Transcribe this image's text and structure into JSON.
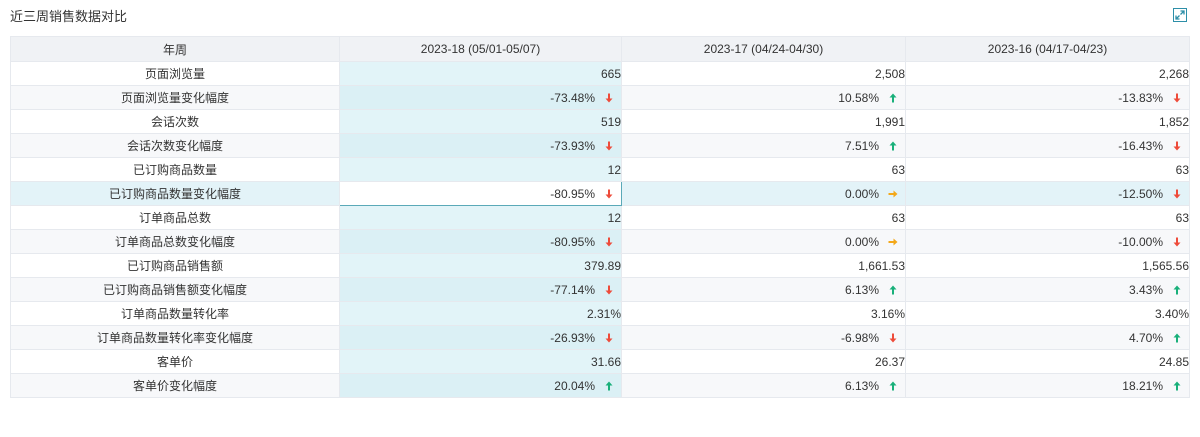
{
  "panel": {
    "title": "近三周销售数据对比",
    "expand_icon": "expand-icon"
  },
  "colors": {
    "up": "#19b07a",
    "down": "#ee4b3a",
    "flat": "#f3a81a"
  },
  "table": {
    "headers": [
      "年周",
      "2023-18 (05/01-05/07)",
      "2023-17 (04/24-04/30)",
      "2023-16 (04/17-04/23)"
    ],
    "rows": [
      {
        "label": "页面浏览量",
        "cells": [
          {
            "v": "665"
          },
          {
            "v": "2,508"
          },
          {
            "v": "2,268"
          }
        ]
      },
      {
        "label": "页面浏览量变化幅度",
        "cells": [
          {
            "v": "-73.48%",
            "t": "down"
          },
          {
            "v": "10.58%",
            "t": "up"
          },
          {
            "v": "-13.83%",
            "t": "down"
          }
        ]
      },
      {
        "label": "会话次数",
        "cells": [
          {
            "v": "519"
          },
          {
            "v": "1,991"
          },
          {
            "v": "1,852"
          }
        ]
      },
      {
        "label": "会话次数变化幅度",
        "cells": [
          {
            "v": "-73.93%",
            "t": "down"
          },
          {
            "v": "7.51%",
            "t": "up"
          },
          {
            "v": "-16.43%",
            "t": "down"
          }
        ]
      },
      {
        "label": "已订购商品数量",
        "cells": [
          {
            "v": "12"
          },
          {
            "v": "63"
          },
          {
            "v": "63"
          }
        ]
      },
      {
        "label": "已订购商品数量变化幅度",
        "cells": [
          {
            "v": "-80.95%",
            "t": "down"
          },
          {
            "v": "0.00%",
            "t": "flat"
          },
          {
            "v": "-12.50%",
            "t": "down"
          }
        ]
      },
      {
        "label": "订单商品总数",
        "cells": [
          {
            "v": "12"
          },
          {
            "v": "63"
          },
          {
            "v": "63"
          }
        ]
      },
      {
        "label": "订单商品总数变化幅度",
        "cells": [
          {
            "v": "-80.95%",
            "t": "down"
          },
          {
            "v": "0.00%",
            "t": "flat"
          },
          {
            "v": "-10.00%",
            "t": "down"
          }
        ]
      },
      {
        "label": "已订购商品销售额",
        "cells": [
          {
            "v": "379.89"
          },
          {
            "v": "1,661.53"
          },
          {
            "v": "1,565.56"
          }
        ]
      },
      {
        "label": "已订购商品销售额变化幅度",
        "cells": [
          {
            "v": "-77.14%",
            "t": "down"
          },
          {
            "v": "6.13%",
            "t": "up"
          },
          {
            "v": "3.43%",
            "t": "up"
          }
        ]
      },
      {
        "label": "订单商品数量转化率",
        "cells": [
          {
            "v": "2.31%"
          },
          {
            "v": "3.16%"
          },
          {
            "v": "3.40%"
          }
        ]
      },
      {
        "label": "订单商品数量转化率变化幅度",
        "cells": [
          {
            "v": "-26.93%",
            "t": "down"
          },
          {
            "v": "-6.98%",
            "t": "down"
          },
          {
            "v": "4.70%",
            "t": "up"
          }
        ]
      },
      {
        "label": "客单价",
        "cells": [
          {
            "v": "31.66"
          },
          {
            "v": "26.37"
          },
          {
            "v": "24.85"
          }
        ]
      },
      {
        "label": "客单价变化幅度",
        "cells": [
          {
            "v": "20.04%",
            "t": "up"
          },
          {
            "v": "6.13%",
            "t": "up"
          },
          {
            "v": "18.21%",
            "t": "up"
          }
        ]
      }
    ]
  }
}
